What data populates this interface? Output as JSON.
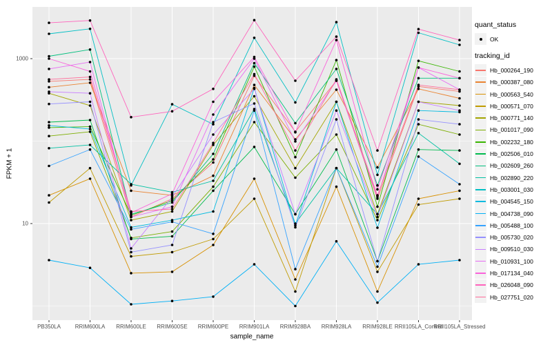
{
  "figure": {
    "background": "#FFFFFF",
    "panel_background": "#EBEBEB",
    "grid_color": "#FFFFFF",
    "tick_color": "#333333",
    "tick_label_color": "#4D4D4D",
    "axis_title_color": "#000000",
    "point_color": "#000000"
  },
  "chart_data": {
    "type": "line",
    "title": "",
    "xlabel": "sample_name",
    "ylabel": "FPKM + 1",
    "y_scale": "log10",
    "y_tick_labels": [
      "1000",
      "10"
    ],
    "y_tick_values": [
      1000,
      10
    ],
    "y_minor_gridline_values": [
      100,
      1
    ],
    "ylim": [
      0.67,
      4300
    ],
    "grid": true,
    "legend_position": "right",
    "categories": [
      "PB350LA",
      "RRIM600LA",
      "RRIM600LE",
      "RRIM600SE",
      "RRIM600PE",
      "RRIM901LA",
      "RRIM928BA",
      "RRIM928LA",
      "RRIM928LE",
      "RRII105LA_Control",
      "RRII105LA_Stressed"
    ],
    "legend": {
      "quant_status": {
        "title": "quant_status",
        "items": [
          {
            "label": "OK",
            "symbol": "point",
            "color": "#000000"
          }
        ]
      },
      "tracking_id": {
        "title": "tracking_id"
      }
    },
    "series": [
      {
        "name": "Hb_000264_190",
        "color": "#F8766D",
        "values": [
          530,
          560,
          12,
          20,
          55,
          620,
          130,
          540,
          20,
          460,
          400
        ]
      },
      {
        "name": "Hb_000387_080",
        "color": "#EA8331",
        "values": [
          450,
          510,
          25,
          22,
          38,
          480,
          105,
          420,
          48,
          430,
          330
        ]
      },
      {
        "name": "Hb_000563_540",
        "color": "#D89000",
        "values": [
          22,
          35,
          2.5,
          2.6,
          5.5,
          35,
          2.1,
          28,
          1.5,
          20,
          25
        ]
      },
      {
        "name": "Hb_000571_070",
        "color": "#C09B00",
        "values": [
          18,
          47,
          4,
          4.5,
          6.5,
          20,
          1.5,
          47,
          2.6,
          17,
          20
        ]
      },
      {
        "name": "Hb_000771_140",
        "color": "#A3A500",
        "values": [
          380,
          270,
          11,
          14,
          90,
          350,
          47,
          300,
          13,
          300,
          270
        ]
      },
      {
        "name": "Hb_001017_090",
        "color": "#7CAE00",
        "values": [
          115,
          130,
          6.7,
          8,
          28,
          170,
          36,
          120,
          11,
          160,
          120
        ]
      },
      {
        "name": "Hb_002232_180",
        "color": "#39B600",
        "values": [
          146,
          150,
          12.6,
          19,
          60,
          800,
          64,
          960,
          16,
          940,
          700
        ]
      },
      {
        "name": "Hb_002506_010",
        "color": "#00BB4E",
        "values": [
          170,
          180,
          6.5,
          7,
          25,
          85,
          13,
          79,
          3.5,
          79,
          77
        ]
      },
      {
        "name": "Hb_002609_260",
        "color": "#00BF7D",
        "values": [
          1070,
          1290,
          13,
          18,
          70,
          880,
          165,
          750,
          29,
          580,
          580
        ]
      },
      {
        "name": "Hb_002890_220",
        "color": "#00C1A3",
        "values": [
          82,
          90,
          30,
          24,
          33,
          245,
          10,
          47,
          13,
          125,
          53
        ]
      },
      {
        "name": "Hb_003001_030",
        "color": "#00BFC4",
        "values": [
          2000,
          2300,
          29,
          280,
          160,
          1790,
          295,
          2770,
          39,
          2060,
          1470
        ]
      },
      {
        "name": "Hb_004545_150",
        "color": "#00BAE0",
        "values": [
          155,
          140,
          9,
          11,
          14,
          440,
          9.5,
          300,
          8.9,
          235,
          225
        ]
      },
      {
        "name": "Hb_004738_090",
        "color": "#00B0F6",
        "values": [
          3.6,
          2.9,
          1.05,
          1.15,
          1.3,
          3.2,
          1.0,
          6.1,
          1.1,
          3.2,
          3.6
        ]
      },
      {
        "name": "Hb_005488_100",
        "color": "#35A2FF",
        "values": [
          50,
          79,
          8.5,
          10.5,
          7.5,
          235,
          2.8,
          47,
          3.0,
          65,
          30
        ]
      },
      {
        "name": "Hb_005730_020",
        "color": "#9590FF",
        "values": [
          282,
          300,
          4.5,
          5.5,
          170,
          286,
          9,
          183,
          3.5,
          183,
          160
        ]
      },
      {
        "name": "Hb_009510_030",
        "color": "#C77CFF",
        "values": [
          397,
          380,
          5,
          21,
          120,
          430,
          13,
          235,
          12,
          300,
          235
        ]
      },
      {
        "name": "Hb_010931_100",
        "color": "#E76BF3",
        "values": [
          750,
          910,
          12,
          16,
          210,
          1000,
          99,
          540,
          21,
          780,
          420
        ]
      },
      {
        "name": "Hb_017134_040",
        "color": "#FA62DB",
        "values": [
          1000,
          700,
          13.5,
          23,
          300,
          1050,
          128,
          1680,
          26,
          780,
          580
        ]
      },
      {
        "name": "Hb_026048_090",
        "color": "#FF62BC",
        "values": [
          2720,
          2900,
          195,
          230,
          430,
          2930,
          540,
          1850,
          77,
          2280,
          1680
        ]
      },
      {
        "name": "Hb_027751_020",
        "color": "#FF6A98",
        "values": [
          560,
          600,
          14,
          15,
          95,
          650,
          77,
          560,
          22,
          480,
          420
        ]
      }
    ]
  }
}
